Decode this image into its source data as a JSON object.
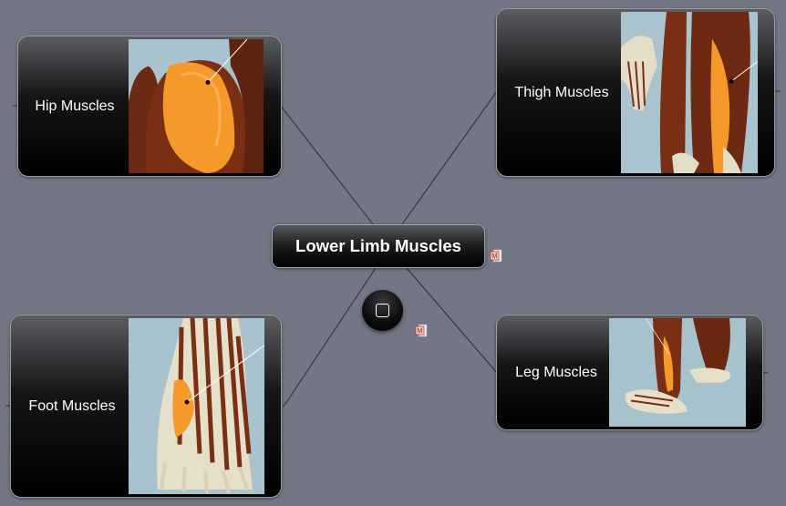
{
  "map": {
    "central_topic": "Lower Limb Muscles",
    "topics": [
      {
        "label": "Hip Muscles",
        "image": "hip-muscles-illustration"
      },
      {
        "label": "Thigh Muscles",
        "image": "thigh-muscles-illustration"
      },
      {
        "label": "Foot Muscles",
        "image": "foot-muscles-illustration"
      },
      {
        "label": "Leg Muscles",
        "image": "leg-muscles-illustration"
      }
    ]
  },
  "icons": {
    "attachment": "document-attachment-icon",
    "collapse": "collapse-toggle-icon"
  },
  "colors": {
    "background": "#737684",
    "node_fill": "#000000",
    "connector": "#2c2d33",
    "muscle": "#7a2e14",
    "highlight": "#f59a2a",
    "image_backdrop": "#a6c2cc"
  }
}
